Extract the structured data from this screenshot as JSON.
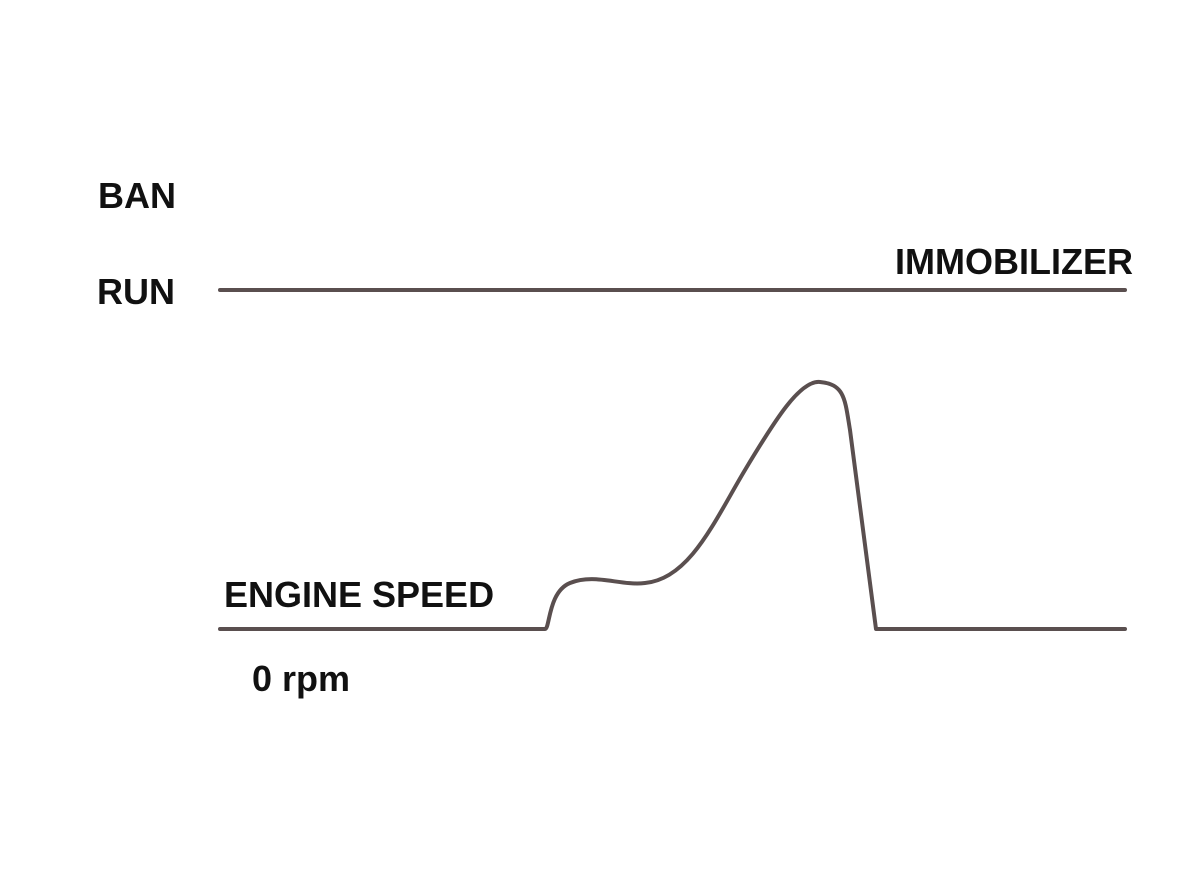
{
  "labels": {
    "ban": "BAN",
    "run": "RUN",
    "immobilizer": "IMMOBILIZER",
    "engine_speed": "ENGINE SPEED",
    "zero": "0 rpm"
  }
}
